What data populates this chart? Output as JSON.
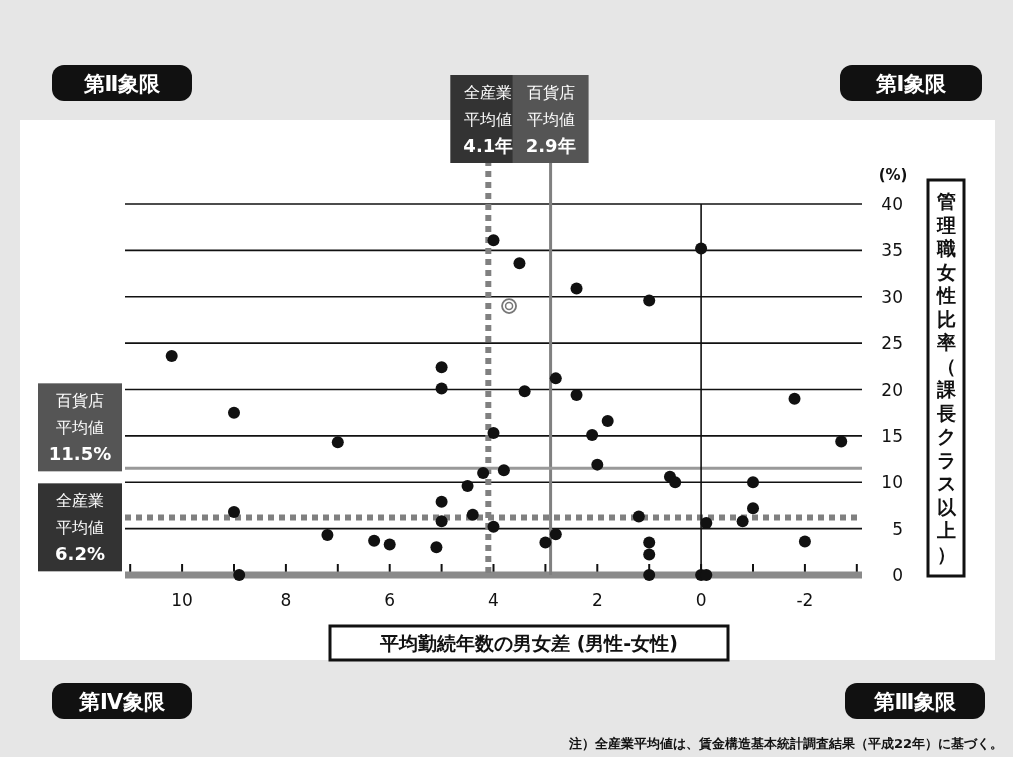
{
  "chart_data": {
    "type": "scatter",
    "xlabel": "平均勤続年数の男女差 (男性-女性)",
    "ylabel": "管理職女性比率（課長クラス以上）",
    "annotations": [
      "第Ⅱ象限",
      "第Ⅰ象限",
      "第Ⅳ象限",
      "第Ⅲ象限",
      "(%)",
      "注）全産業平均値は、賃金構造基本統計調査結果（平成22年）に基づく。"
    ],
    "xlim": [
      11.1,
      -3.1
    ],
    "xticks": [
      {
        "value": 11,
        "label": null
      },
      10,
      {
        "value": 9,
        "label": null
      },
      8,
      {
        "value": 7,
        "label": null
      },
      6,
      {
        "value": 5,
        "label": null
      },
      4,
      {
        "value": 3,
        "label": null
      },
      2,
      {
        "value": 1,
        "label": null
      },
      0,
      {
        "value": -1,
        "label": null
      },
      {
        "value": -2,
        "label": "-2"
      },
      {
        "value": -3,
        "label": null
      }
    ],
    "ylim": [
      0,
      40
    ],
    "yticks": [
      0,
      5,
      10,
      15,
      20,
      25,
      30,
      35,
      40
    ],
    "grid": "y",
    "marker": "circle",
    "ref_lines": [
      {
        "axis": "x",
        "value": 4.1,
        "label": "全産業平均値4.1年",
        "color": "#808080",
        "line_style": "dotted"
      },
      {
        "axis": "x",
        "value": 2.9,
        "label": "百貨店平均値2.9年",
        "color": "#808080",
        "line_style": "solid"
      },
      {
        "axis": "y",
        "value": 11.5,
        "label": "百貨店平均値11.5%",
        "color": "#999999",
        "line_style": "solid"
      },
      {
        "axis": "y",
        "value": 6.2,
        "label": "全産業平均値6.2%",
        "color": "#808080",
        "line_style": "dotted"
      },
      {
        "axis": "x",
        "value": 0,
        "color": "#111111",
        "line_style": "solid"
      }
    ],
    "series": [
      {
        "color": "#111111",
        "x": [
          10.2,
          5.0,
          5.0,
          9.0,
          4.0,
          7.0,
          4.2,
          4.5,
          5.0,
          9.0,
          4.4,
          5.0,
          4.0,
          7.2,
          6.3,
          6.0,
          5.1,
          8.9,
          4.0,
          3.5,
          2.4,
          1.0,
          0.0,
          2.8,
          3.4,
          2.4,
          -1.8,
          1.8,
          2.1,
          -2.7,
          2.0,
          3.8,
          0.6,
          0.5,
          -1.0,
          -1.0,
          1.2,
          -0.8,
          -0.1,
          2.8,
          3.0,
          1.0,
          1.0,
          -2.0,
          1.0,
          0.0,
          -0.1
        ],
        "values": [
          23.6,
          22.4,
          20.1,
          17.5,
          15.3,
          14.3,
          11.0,
          9.6,
          7.9,
          6.8,
          6.5,
          5.8,
          5.2,
          4.3,
          3.7,
          3.3,
          3.0,
          0,
          36.1,
          33.6,
          30.9,
          29.6,
          35.2,
          21.2,
          19.8,
          19.4,
          19.0,
          16.6,
          15.1,
          14.4,
          11.9,
          11.3,
          10.6,
          10.0,
          10.0,
          7.2,
          6.3,
          5.8,
          5.6,
          4.4,
          3.5,
          3.5,
          2.2,
          3.6,
          0,
          0,
          0
        ]
      },
      {
        "color": "#777777",
        "x": [
          3.7
        ],
        "values": [
          29.0
        ]
      }
    ]
  }
}
